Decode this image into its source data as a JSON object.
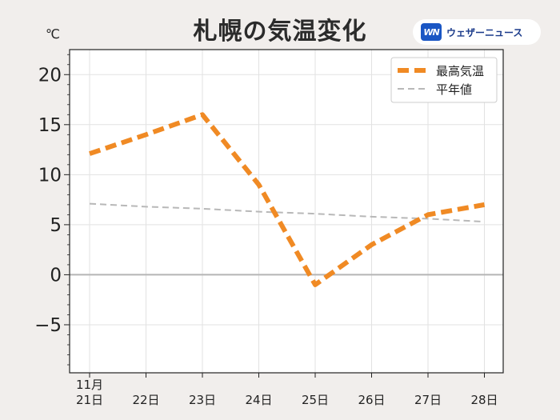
{
  "brand": {
    "logo": "WN",
    "name": "ウェザーニュース"
  },
  "chart_data": {
    "type": "line",
    "title": "札幌の気温変化",
    "ylabel": "℃",
    "ylim": [
      -9.8,
      22.5
    ],
    "yticks": [
      20,
      15,
      10,
      5,
      0,
      -5
    ],
    "ytick_labels": [
      "20",
      "15",
      "10",
      "5",
      "0",
      "−5"
    ],
    "categories": [
      "21日",
      "22日",
      "23日",
      "24日",
      "25日",
      "26日",
      "27日",
      "28日"
    ],
    "month_label": "11月",
    "grid": true,
    "legend_position": "top-right",
    "series": [
      {
        "name": "最高気温",
        "color": "#f08a24",
        "style": "dashed-thick",
        "values": [
          12.1,
          14.0,
          16.0,
          9.0,
          -1.0,
          3.0,
          6.0,
          7.0
        ]
      },
      {
        "name": "平年値",
        "color": "#b8b8b8",
        "style": "dashed-thin",
        "values": [
          7.1,
          6.8,
          6.6,
          6.3,
          6.1,
          5.8,
          5.6,
          5.3
        ]
      }
    ]
  }
}
